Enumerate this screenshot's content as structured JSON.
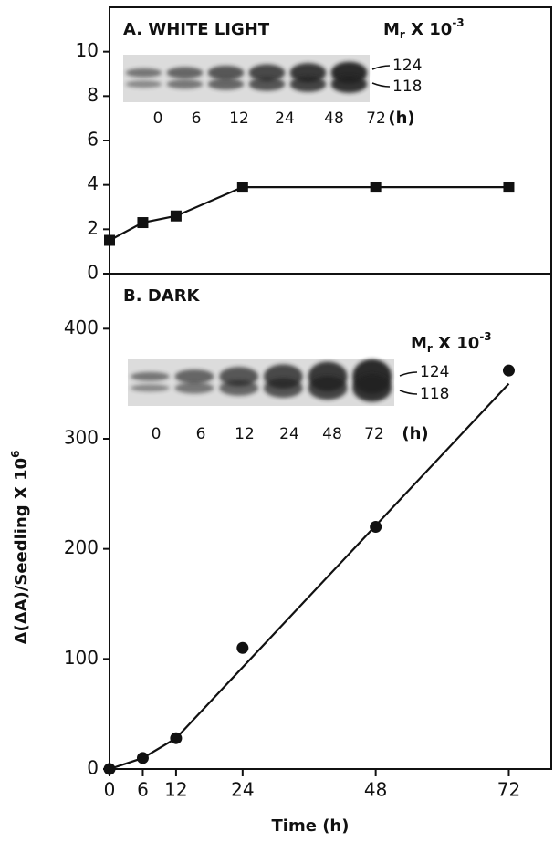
{
  "figure": {
    "xlabel": "Time (h)",
    "ylabel": "Δ(ΔA)/Seedling X 10",
    "ylabel_sup": "6"
  },
  "chart_data": [
    {
      "type": "line",
      "title": "A. WHITE LIGHT",
      "x": [
        0,
        6,
        12,
        24,
        48,
        72
      ],
      "series": [
        {
          "color": "#111111",
          "marker": "square",
          "values": [
            1.5,
            2.3,
            2.6,
            3.9,
            3.9,
            3.9
          ]
        }
      ],
      "xlim": [
        0,
        79
      ],
      "ylim": [
        0,
        12
      ],
      "yticks": [
        0,
        2,
        4,
        6,
        8,
        10
      ],
      "blot": {
        "lanes": [
          "0",
          "6",
          "12",
          "24",
          "48",
          "72"
        ],
        "unit": "(h)",
        "bands": [
          "124",
          "118"
        ],
        "mr_label": {
          "base": "M",
          "sub": "r",
          "mid": " X 10",
          "sup": "-3"
        }
      }
    },
    {
      "type": "scatter",
      "title": "B. DARK",
      "series": [
        {
          "color": "#111111",
          "marker": "circle",
          "x": [
            0,
            6,
            12,
            24,
            48,
            72
          ],
          "values": [
            0,
            10,
            28,
            110,
            220,
            362
          ]
        },
        {
          "color": "#111111",
          "marker": "none",
          "x": [
            0,
            6,
            12,
            72
          ],
          "values": [
            0,
            10,
            28,
            350
          ]
        }
      ],
      "xlim": [
        0,
        79
      ],
      "xticks": [
        0,
        6,
        12,
        24,
        48,
        72
      ],
      "ylim": [
        0,
        450
      ],
      "yticks": [
        0,
        100,
        200,
        300,
        400
      ],
      "blot": {
        "lanes": [
          "0",
          "6",
          "12",
          "24",
          "48",
          "72"
        ],
        "unit": "(h)",
        "bands": [
          "124",
          "118"
        ],
        "mr_label": {
          "base": "M",
          "sub": "r",
          "mid": " X 10",
          "sup": "-3"
        }
      }
    }
  ]
}
